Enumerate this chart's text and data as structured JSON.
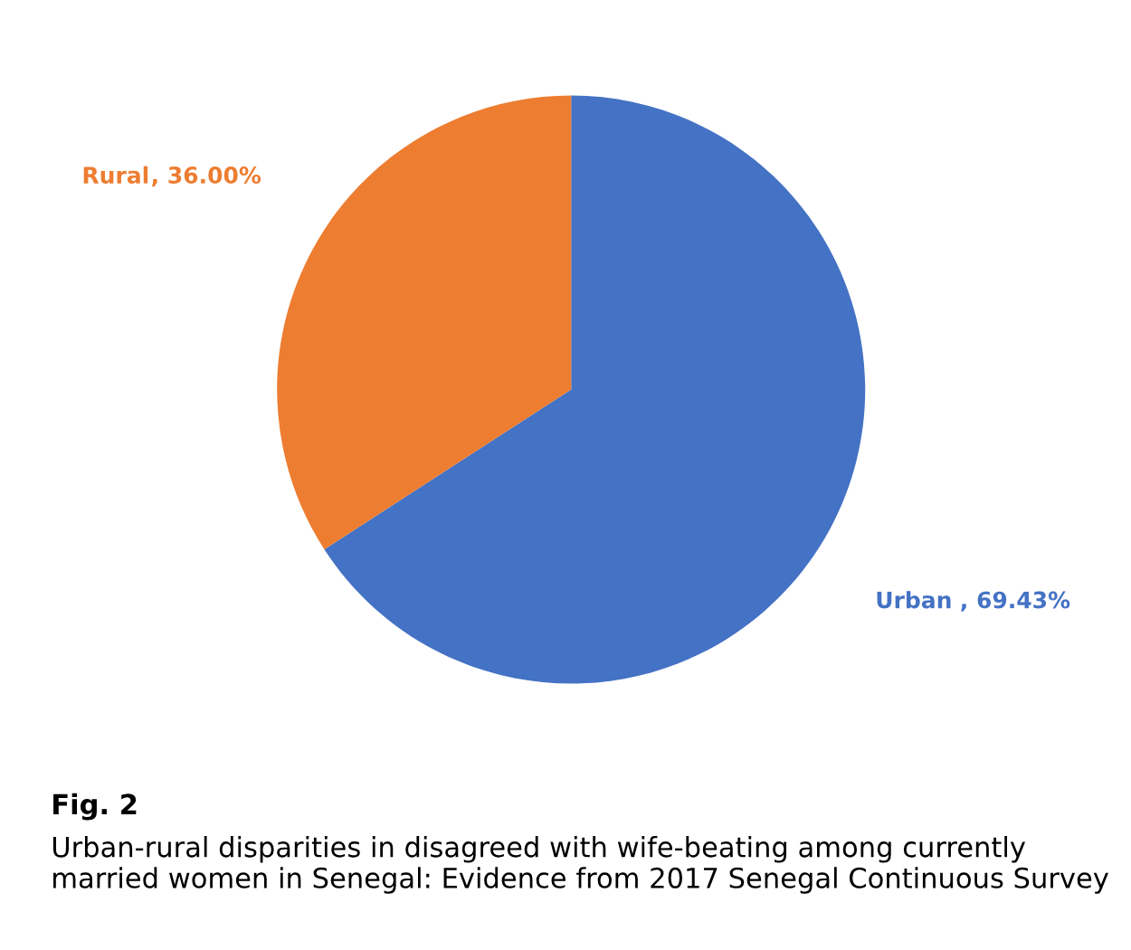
{
  "chart_data": {
    "type": "pie",
    "categories": [
      "Urban",
      "Rural"
    ],
    "values": [
      69.43,
      36.0
    ],
    "colors": [
      "#4472c4",
      "#ed7d31"
    ],
    "value_labels": [
      ", 69.43%",
      ", 36.00%"
    ],
    "annotations": [
      "Fig. 2",
      "Urban-rural disparities in disagreed with wife-beating among currently married women in Senegal: Evidence from 2017 Senegal Continuous Survey"
    ]
  }
}
